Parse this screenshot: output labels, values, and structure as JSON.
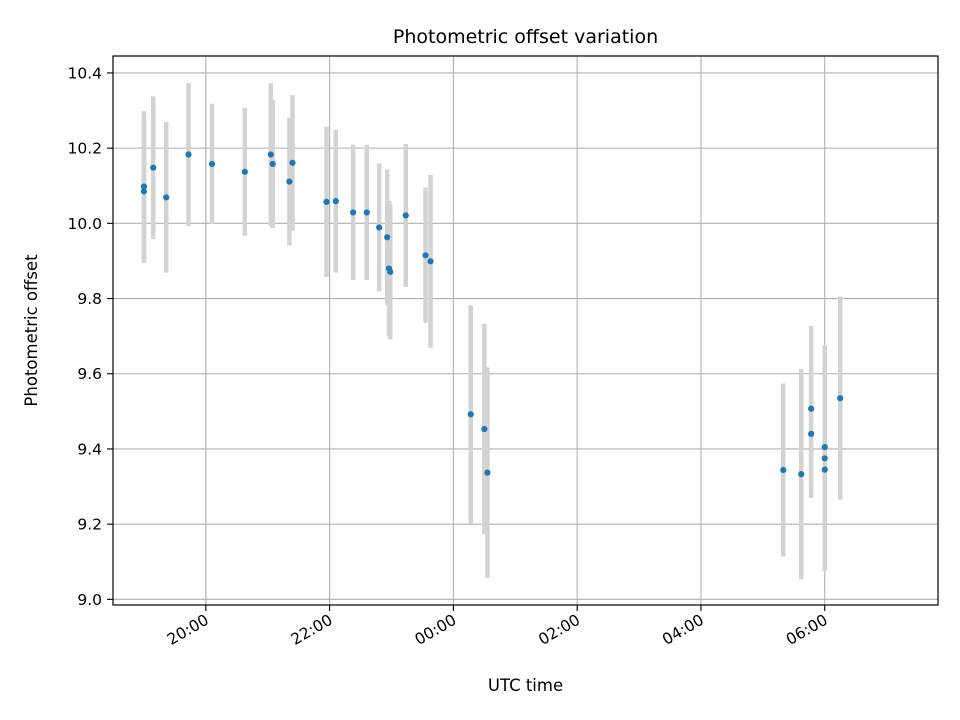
{
  "chart_data": {
    "type": "scatter",
    "title": "Photometric offset variation",
    "xlabel": "UTC time",
    "ylabel": "Photometric offset",
    "x_axis": {
      "unit": "hours since 00:00 UTC",
      "range": [
        -5.5,
        7.83
      ],
      "ticks": [
        {
          "value": -4,
          "label": "20:00"
        },
        {
          "value": -2,
          "label": "22:00"
        },
        {
          "value": 0,
          "label": "00:00"
        },
        {
          "value": 2,
          "label": "02:00"
        },
        {
          "value": 4,
          "label": "04:00"
        },
        {
          "value": 6,
          "label": "06:00"
        }
      ],
      "tick_label_rotation_deg": -30
    },
    "y_axis": {
      "range": [
        8.985,
        10.445
      ],
      "ticks": [
        {
          "value": 9.0,
          "label": "9.0"
        },
        {
          "value": 9.2,
          "label": "9.2"
        },
        {
          "value": 9.4,
          "label": "9.4"
        },
        {
          "value": 9.6,
          "label": "9.6"
        },
        {
          "value": 9.8,
          "label": "9.8"
        },
        {
          "value": 10.0,
          "label": "10.0"
        },
        {
          "value": 10.2,
          "label": "10.2"
        },
        {
          "value": 10.4,
          "label": "10.4"
        }
      ]
    },
    "grid": true,
    "colors": {
      "points": "#1f77b4",
      "error_bars": "#d3d3d3",
      "grid": "#b0b0b0"
    },
    "points": [
      {
        "x": -5.0,
        "y": 10.098,
        "yerr": 0.2
      },
      {
        "x": -5.0,
        "y": 10.085,
        "yerr": 0.19
      },
      {
        "x": -4.85,
        "y": 10.148,
        "yerr": 0.19
      },
      {
        "x": -4.64,
        "y": 10.069,
        "yerr": 0.2
      },
      {
        "x": -4.28,
        "y": 10.183,
        "yerr": 0.19
      },
      {
        "x": -3.9,
        "y": 10.158,
        "yerr": 0.16
      },
      {
        "x": -3.37,
        "y": 10.137,
        "yerr": 0.17
      },
      {
        "x": -2.95,
        "y": 10.183,
        "yerr": 0.19
      },
      {
        "x": -2.92,
        "y": 10.158,
        "yerr": 0.17
      },
      {
        "x": -2.65,
        "y": 10.111,
        "yerr": 0.17
      },
      {
        "x": -2.6,
        "y": 10.161,
        "yerr": 0.18
      },
      {
        "x": -2.05,
        "y": 10.057,
        "yerr": 0.2
      },
      {
        "x": -1.9,
        "y": 10.059,
        "yerr": 0.19
      },
      {
        "x": -1.62,
        "y": 10.029,
        "yerr": 0.18
      },
      {
        "x": -1.4,
        "y": 10.029,
        "yerr": 0.18
      },
      {
        "x": -1.2,
        "y": 9.989,
        "yerr": 0.17
      },
      {
        "x": -1.07,
        "y": 9.963,
        "yerr": 0.18
      },
      {
        "x": -1.04,
        "y": 9.88,
        "yerr": 0.18
      },
      {
        "x": -1.02,
        "y": 9.871,
        "yerr": 0.18
      },
      {
        "x": -0.77,
        "y": 10.021,
        "yerr": 0.19
      },
      {
        "x": -0.45,
        "y": 9.915,
        "yerr": 0.18
      },
      {
        "x": -0.37,
        "y": 9.899,
        "yerr": 0.23
      },
      {
        "x": 0.28,
        "y": 9.492,
        "yerr": 0.29
      },
      {
        "x": 0.5,
        "y": 9.453,
        "yerr": 0.28
      },
      {
        "x": 0.55,
        "y": 9.337,
        "yerr": 0.28
      },
      {
        "x": 5.33,
        "y": 9.344,
        "yerr": 0.23
      },
      {
        "x": 5.62,
        "y": 9.333,
        "yerr": 0.28
      },
      {
        "x": 5.78,
        "y": 9.507,
        "yerr": 0.22
      },
      {
        "x": 5.78,
        "y": 9.44,
        "yerr": 0.17
      },
      {
        "x": 6.0,
        "y": 9.405,
        "yerr": 0.27
      },
      {
        "x": 6.0,
        "y": 9.375,
        "yerr": 0.3
      },
      {
        "x": 6.0,
        "y": 9.345,
        "yerr": 0.26
      },
      {
        "x": 6.25,
        "y": 9.535,
        "yerr": 0.27
      }
    ]
  }
}
